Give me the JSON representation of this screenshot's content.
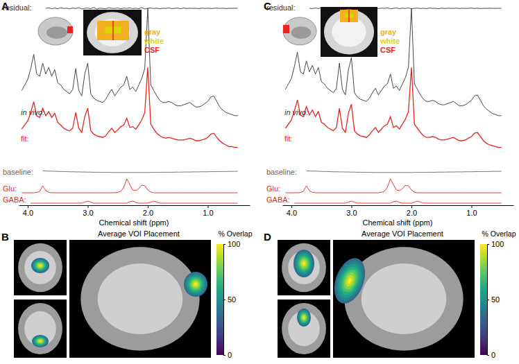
{
  "chart_data": [
    {
      "type": "line",
      "title": "A",
      "x_label": "Chemical shift (ppm)",
      "x": [
        4.1,
        4.05,
        4,
        3.95,
        3.9,
        3.85,
        3.8,
        3.75,
        3.7,
        3.65,
        3.6,
        3.55,
        3.5,
        3.45,
        3.4,
        3.35,
        3.3,
        3.25,
        3.2,
        3.15,
        3.1,
        3.05,
        3,
        2.95,
        2.9,
        2.85,
        2.8,
        2.75,
        2.7,
        2.65,
        2.6,
        2.55,
        2.5,
        2.45,
        2.4,
        2.35,
        2.3,
        2.25,
        2.2,
        2.15,
        2.1,
        2.05,
        2,
        1.95,
        1.9,
        1.85,
        1.8,
        1.75,
        1.7,
        1.65,
        1.6,
        1.55,
        1.5,
        1.45,
        1.4,
        1.35,
        1.3,
        1.25,
        1.2,
        1.15,
        1.1,
        1.05,
        1,
        0.95,
        0.9,
        0.85,
        0.8,
        0.75,
        0.7,
        0.65,
        0.6,
        0.55,
        0.5
      ],
      "xlim": [
        4.15,
        0.3
      ],
      "xticks": [
        {
          "value": 4,
          "label": "4.0"
        },
        {
          "value": 3,
          "label": "3.0"
        },
        {
          "value": 2,
          "label": "2.0"
        },
        {
          "value": 1,
          "label": "1.0"
        }
      ],
      "ylim": [
        0,
        100
      ],
      "tick_labels": "x",
      "segmentation": {
        "labels": [
          "gray",
          "white",
          "CSF"
        ],
        "colors": [
          "#f2b01e",
          "#d8d800",
          "#e8251c"
        ]
      },
      "series": [
        {
          "name": "residual:",
          "color": "#333333",
          "values": [
            null,
            null,
            null,
            null,
            null,
            null,
            null,
            null,
            50,
            54,
            47,
            52,
            46,
            55,
            49,
            51,
            45,
            53,
            48,
            56,
            44,
            50,
            52,
            47,
            58,
            43,
            51,
            49,
            46,
            55,
            50,
            48,
            53,
            45,
            52,
            49,
            54,
            47,
            51,
            46,
            57,
            44,
            50,
            53,
            48,
            52,
            45,
            51,
            49,
            54,
            47,
            50,
            52,
            46,
            53,
            48,
            51,
            49,
            50,
            47,
            52,
            49,
            51,
            48,
            50,
            52,
            49,
            51,
            48,
            50,
            49,
            51,
            50
          ]
        },
        {
          "name": "in vivo:",
          "color": "#333333",
          "values": [
            25,
            30,
            35,
            45,
            58,
            40,
            38,
            50,
            40,
            46,
            38,
            44,
            32,
            30,
            26,
            24,
            22,
            26,
            45,
            25,
            20,
            40,
            50,
            22,
            18,
            16,
            15,
            14,
            17,
            22,
            26,
            20,
            24,
            28,
            30,
            38,
            26,
            28,
            24,
            30,
            36,
            45,
            100,
            30,
            25,
            20,
            16,
            14,
            14,
            15,
            14,
            12,
            11,
            11,
            12,
            13,
            14,
            12,
            10,
            10,
            11,
            13,
            15,
            19,
            20,
            15,
            10,
            7,
            5,
            4,
            3,
            2,
            2
          ]
        },
        {
          "name": "fit:",
          "color": "#e8251c",
          "values": [
            24,
            29,
            34,
            44,
            57,
            40,
            38,
            49,
            40,
            45,
            38,
            43,
            32,
            29,
            25,
            23,
            22,
            25,
            44,
            25,
            20,
            39,
            49,
            22,
            18,
            16,
            15,
            14,
            16,
            21,
            25,
            20,
            23,
            27,
            29,
            37,
            26,
            27,
            24,
            29,
            35,
            44,
            98,
            30,
            24,
            19,
            16,
            14,
            13,
            14,
            13,
            12,
            11,
            11,
            11,
            12,
            13,
            12,
            10,
            10,
            11,
            12,
            14,
            18,
            19,
            14,
            10,
            7,
            5,
            3,
            3,
            2,
            2
          ]
        },
        {
          "name": "baseline:",
          "color": "#666666",
          "values": [
            null,
            null,
            null,
            null,
            null,
            null,
            null,
            53,
            52,
            51,
            51,
            50,
            49,
            48,
            48,
            47,
            46,
            46,
            45,
            45,
            44,
            44,
            43,
            43,
            42,
            42,
            42,
            41,
            41,
            41,
            40,
            40,
            40,
            40,
            40,
            40,
            40,
            40,
            40,
            40,
            40,
            40,
            40,
            41,
            41,
            41,
            41,
            42,
            42,
            42,
            42,
            43,
            43,
            43,
            44,
            44,
            44,
            45,
            45,
            45,
            46,
            46,
            46,
            47,
            47,
            47,
            48,
            48,
            48,
            49,
            49,
            49,
            50
          ]
        },
        {
          "name": "Glu:",
          "color": "#e8251c",
          "values": [
            0,
            0,
            0,
            0,
            0,
            2,
            10,
            50,
            15,
            3,
            0,
            0,
            0,
            0,
            0,
            0,
            0,
            0,
            0,
            0,
            0,
            0,
            0,
            0,
            0,
            0,
            0,
            0,
            0,
            0,
            0,
            0,
            3,
            10,
            40,
            100,
            60,
            20,
            15,
            30,
            55,
            50,
            20,
            5,
            0,
            0,
            0,
            0,
            0,
            0,
            0,
            0,
            0,
            0,
            0,
            0,
            0,
            0,
            0,
            0,
            0,
            0,
            0,
            0,
            0,
            0,
            0,
            0,
            0,
            0,
            0,
            0,
            0
          ]
        },
        {
          "name": "GABA:",
          "color": "#e8251c",
          "values": [
            null,
            null,
            null,
            0,
            0,
            0,
            0,
            0,
            0,
            0,
            0,
            0,
            0,
            0,
            0,
            0,
            0,
            0,
            0,
            0,
            0,
            15,
            30,
            15,
            0,
            0,
            0,
            0,
            0,
            0,
            0,
            0,
            0,
            0,
            0,
            0,
            20,
            30,
            10,
            0,
            0,
            0,
            0,
            15,
            30,
            15,
            0,
            0,
            0,
            0,
            0,
            0,
            0,
            0,
            0,
            0,
            0,
            0,
            0,
            0,
            0,
            0,
            0,
            0,
            0,
            0,
            0,
            0,
            0,
            0,
            0,
            0,
            0
          ]
        }
      ]
    },
    {
      "type": "line",
      "title": "C",
      "x_label": "Chemical shift (ppm)",
      "x": [
        4.1,
        4.05,
        4,
        3.95,
        3.9,
        3.85,
        3.8,
        3.75,
        3.7,
        3.65,
        3.6,
        3.55,
        3.5,
        3.45,
        3.4,
        3.35,
        3.3,
        3.25,
        3.2,
        3.15,
        3.1,
        3.05,
        3,
        2.95,
        2.9,
        2.85,
        2.8,
        2.75,
        2.7,
        2.65,
        2.6,
        2.55,
        2.5,
        2.45,
        2.4,
        2.35,
        2.3,
        2.25,
        2.2,
        2.15,
        2.1,
        2.05,
        2,
        1.95,
        1.9,
        1.85,
        1.8,
        1.75,
        1.7,
        1.65,
        1.6,
        1.55,
        1.5,
        1.45,
        1.4,
        1.35,
        1.3,
        1.25,
        1.2,
        1.15,
        1.1,
        1.05,
        1,
        0.95,
        0.9,
        0.85,
        0.8,
        0.75,
        0.7,
        0.65,
        0.6,
        0.55,
        0.5
      ],
      "xlim": [
        4.15,
        0.3
      ],
      "xticks": [
        {
          "value": 4,
          "label": "4.0"
        },
        {
          "value": 3,
          "label": "3.0"
        },
        {
          "value": 2,
          "label": "2.0"
        },
        {
          "value": 1,
          "label": "1.0"
        }
      ],
      "ylim": [
        0,
        100
      ],
      "tick_labels": "x",
      "segmentation": {
        "labels": [
          "gray",
          "white",
          "CSF"
        ],
        "colors": [
          "#f2b01e",
          "#d8d800",
          "#e8251c"
        ]
      },
      "series": [
        {
          "name": "residual:",
          "color": "#333333",
          "values": [
            null,
            null,
            null,
            null,
            null,
            null,
            null,
            null,
            51,
            47,
            53,
            48,
            55,
            46,
            52,
            49,
            50,
            54,
            45,
            51,
            48,
            57,
            44,
            52,
            49,
            53,
            47,
            50,
            55,
            46,
            51,
            48,
            52,
            49,
            56,
            45,
            50,
            53,
            47,
            51,
            49,
            54,
            46,
            50,
            52,
            48,
            51,
            47,
            53,
            49,
            50,
            46,
            52,
            48,
            51,
            50,
            49,
            52,
            48,
            51,
            49,
            50,
            52,
            49,
            51,
            48,
            50,
            49,
            51,
            50,
            49,
            50,
            51
          ]
        },
        {
          "name": "in vivo:",
          "color": "#333333",
          "values": [
            26,
            31,
            36,
            47,
            60,
            42,
            40,
            52,
            42,
            48,
            40,
            46,
            33,
            31,
            27,
            25,
            23,
            27,
            50,
            26,
            21,
            44,
            55,
            23,
            19,
            17,
            16,
            15,
            18,
            23,
            27,
            21,
            25,
            29,
            31,
            40,
            27,
            29,
            25,
            31,
            37,
            46,
            100,
            31,
            26,
            21,
            17,
            15,
            15,
            16,
            15,
            13,
            12,
            12,
            13,
            14,
            15,
            13,
            11,
            11,
            12,
            14,
            16,
            20,
            21,
            16,
            11,
            8,
            6,
            4,
            3,
            2,
            2
          ]
        },
        {
          "name": "fit:",
          "color": "#e8251c",
          "values": [
            25,
            30,
            35,
            46,
            59,
            41,
            39,
            51,
            41,
            47,
            39,
            45,
            32,
            30,
            26,
            24,
            22,
            26,
            49,
            25,
            20,
            43,
            54,
            22,
            18,
            16,
            15,
            14,
            17,
            22,
            26,
            20,
            24,
            28,
            30,
            39,
            26,
            28,
            24,
            30,
            36,
            45,
            98,
            30,
            25,
            20,
            16,
            14,
            14,
            15,
            14,
            12,
            11,
            11,
            12,
            13,
            14,
            12,
            10,
            10,
            11,
            13,
            15,
            19,
            20,
            15,
            10,
            7,
            5,
            4,
            3,
            2,
            2
          ]
        },
        {
          "name": "baseline:",
          "color": "#666666",
          "values": [
            null,
            null,
            null,
            null,
            null,
            null,
            null,
            53,
            52,
            51,
            51,
            50,
            49,
            48,
            48,
            47,
            46,
            46,
            45,
            45,
            44,
            44,
            43,
            43,
            42,
            42,
            42,
            41,
            41,
            41,
            40,
            40,
            40,
            40,
            40,
            40,
            40,
            40,
            40,
            40,
            40,
            40,
            40,
            41,
            41,
            41,
            41,
            42,
            42,
            42,
            42,
            43,
            43,
            43,
            44,
            44,
            44,
            45,
            45,
            45,
            46,
            46,
            46,
            47,
            47,
            47,
            48,
            48,
            48,
            49,
            49,
            49,
            50
          ]
        },
        {
          "name": "Glu:",
          "color": "#e8251c",
          "values": [
            0,
            0,
            0,
            0,
            0,
            2,
            10,
            50,
            15,
            3,
            0,
            0,
            0,
            0,
            0,
            0,
            0,
            0,
            0,
            0,
            0,
            0,
            0,
            0,
            0,
            0,
            0,
            0,
            0,
            0,
            0,
            0,
            3,
            10,
            40,
            100,
            60,
            20,
            15,
            30,
            55,
            50,
            20,
            5,
            0,
            0,
            0,
            0,
            0,
            0,
            0,
            0,
            0,
            0,
            0,
            0,
            0,
            0,
            0,
            0,
            0,
            0,
            0,
            0,
            0,
            0,
            0,
            0,
            0,
            0,
            0,
            0,
            0
          ]
        },
        {
          "name": "GABA:",
          "color": "#e8251c",
          "values": [
            null,
            null,
            null,
            0,
            0,
            0,
            0,
            0,
            0,
            0,
            0,
            0,
            0,
            0,
            0,
            0,
            0,
            0,
            0,
            0,
            0,
            15,
            30,
            15,
            0,
            0,
            0,
            0,
            0,
            0,
            0,
            0,
            0,
            0,
            0,
            0,
            20,
            30,
            10,
            0,
            0,
            0,
            0,
            15,
            30,
            15,
            0,
            0,
            0,
            0,
            0,
            0,
            0,
            0,
            0,
            0,
            0,
            0,
            0,
            0,
            0,
            0,
            0,
            0,
            0,
            0,
            0,
            0,
            0,
            0,
            0,
            0,
            0
          ]
        }
      ]
    },
    {
      "type": "image",
      "title": "B",
      "subtitle": "Average VOI Placement",
      "colorbar": {
        "title": "% Overlap",
        "range": [
          0,
          100
        ],
        "ticks": [
          0,
          50,
          100
        ]
      }
    },
    {
      "type": "image",
      "title": "D",
      "subtitle": "Average VOI Placement",
      "colorbar": {
        "title": "% Overlap",
        "range": [
          0,
          100
        ],
        "ticks": [
          0,
          50,
          100
        ]
      }
    }
  ]
}
